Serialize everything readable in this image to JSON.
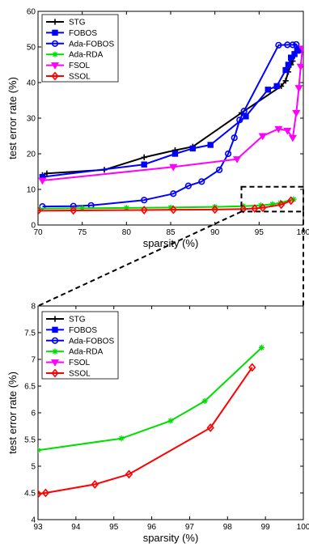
{
  "chart_data": [
    {
      "type": "line",
      "title": "",
      "xlabel": "sparsity (%)",
      "ylabel": "test error rate (%)",
      "xlim": [
        70,
        100
      ],
      "ylim": [
        0,
        60
      ],
      "xticks": [
        70,
        75,
        80,
        85,
        90,
        95,
        100
      ],
      "yticks": [
        0,
        10,
        20,
        30,
        40,
        50,
        60
      ],
      "grid": false,
      "legend": "top-left",
      "series": [
        {
          "name": "STG",
          "color": "#000000",
          "marker": "plus",
          "x": [
            70.5,
            71,
            77.5,
            82,
            85.5,
            87.5,
            93,
            97.5,
            98,
            98.3,
            98.6,
            98.8,
            99,
            99.2,
            99.4,
            99.6
          ],
          "y": [
            14,
            14.5,
            15.5,
            19,
            21,
            22,
            31.5,
            39,
            40.5,
            43,
            45,
            46,
            47.5,
            48.5,
            49,
            49.5
          ]
        },
        {
          "name": "FOBOS",
          "color": "#0000ff",
          "marker": "square",
          "x": [
            70.5,
            82,
            85.5,
            87.5,
            89.5,
            93.5,
            96,
            97,
            98,
            98.3,
            98.6,
            99,
            99.3,
            99.6
          ],
          "y": [
            13.5,
            17,
            20,
            21.5,
            22.5,
            30.5,
            38,
            39,
            43.5,
            45,
            47,
            48,
            49,
            49.5
          ]
        },
        {
          "name": "Ada-FOBOS",
          "color": "#0000ff",
          "marker": "circle",
          "x": [
            70.5,
            74,
            76,
            82,
            85.3,
            87,
            88.5,
            90.5,
            91.5,
            92.2,
            92.8,
            93.3,
            97.2,
            98.2,
            98.8,
            99.2,
            99.5
          ],
          "y": [
            5.2,
            5.3,
            5.5,
            7,
            8.8,
            11,
            12.2,
            15.5,
            20,
            24.5,
            29.5,
            32,
            50.5,
            50.6,
            50.6,
            50.7,
            49
          ]
        },
        {
          "name": "Ada-RDA",
          "color": "#00dd00",
          "marker": "star",
          "x": [
            70,
            75,
            80,
            85,
            90,
            93.2,
            95.2,
            96.5,
            97.4,
            98.9
          ],
          "y": [
            4.6,
            4.7,
            4.8,
            4.9,
            5.1,
            5.3,
            5.52,
            5.85,
            6.22,
            7.22
          ]
        },
        {
          "name": "FSOL",
          "color": "#ff00ff",
          "marker": "triangle-down",
          "x": [
            70.5,
            85.3,
            92.5,
            95.4,
            97.2,
            98.2,
            98.8,
            99.2,
            99.5,
            99.7,
            99.9
          ],
          "y": [
            12.5,
            16.3,
            18.5,
            25,
            27,
            26.5,
            24.5,
            31.5,
            38.5,
            44.5,
            49.5
          ]
        },
        {
          "name": "SSOL",
          "color": "#ff0000",
          "marker": "diamond",
          "x": [
            70,
            74,
            82,
            85.3,
            90,
            93.2,
            94.5,
            95.4,
            97.5,
            98.6
          ],
          "y": [
            4,
            4.1,
            4.2,
            4.3,
            4.35,
            4.5,
            4.65,
            4.85,
            5.72,
            6.85
          ]
        }
      ]
    },
    {
      "type": "line",
      "title": "",
      "xlabel": "sparsity (%)",
      "ylabel": "test error rate (%)",
      "xlim": [
        93,
        100
      ],
      "ylim": [
        4,
        8
      ],
      "xticks": [
        93,
        94,
        95,
        96,
        97,
        98,
        99,
        100
      ],
      "yticks": [
        4,
        4.5,
        5,
        5.5,
        6,
        6.5,
        7,
        7.5,
        8
      ],
      "grid": false,
      "legend": "top-left",
      "series": [
        {
          "name": "STG",
          "color": "#000000",
          "marker": "plus",
          "x": [],
          "y": []
        },
        {
          "name": "FOBOS",
          "color": "#0000ff",
          "marker": "square",
          "x": [],
          "y": []
        },
        {
          "name": "Ada-FOBOS",
          "color": "#0000ff",
          "marker": "circle",
          "x": [],
          "y": []
        },
        {
          "name": "Ada-RDA",
          "color": "#00dd00",
          "marker": "star",
          "x": [
            93,
            95.2,
            96.5,
            97.4,
            98.9
          ],
          "y": [
            5.3,
            5.52,
            5.85,
            6.22,
            7.22
          ]
        },
        {
          "name": "FSOL",
          "color": "#ff00ff",
          "marker": "triangle-down",
          "x": [],
          "y": []
        },
        {
          "name": "SSOL",
          "color": "#ff0000",
          "marker": "diamond",
          "x": [
            93,
            93.2,
            94.5,
            95.4,
            97.55,
            98.65
          ],
          "y": [
            4.48,
            4.5,
            4.66,
            4.85,
            5.72,
            6.85
          ]
        }
      ]
    }
  ]
}
